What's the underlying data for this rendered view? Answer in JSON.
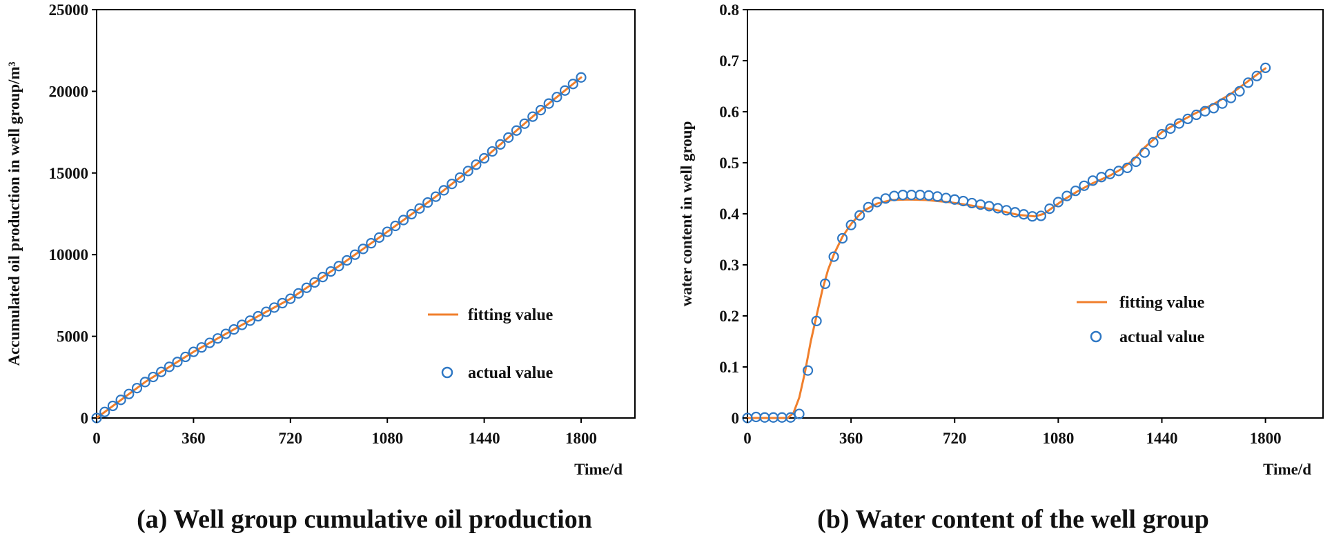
{
  "colors": {
    "fit_line": "#F07F2C",
    "actual_marker": "#2F78C4",
    "axis": "#000000",
    "text": "#111111"
  },
  "chart_data": [
    {
      "id": "a",
      "type": "line",
      "caption": "(a) Well group cumulative oil production",
      "title": "",
      "xlabel": "Time/d",
      "ylabel": "Accumulated oil production in well group/m³",
      "xlim": [
        0,
        2000
      ],
      "ylim": [
        0,
        25000
      ],
      "xticks": [
        0,
        360,
        720,
        1080,
        1440,
        1800
      ],
      "yticks": [
        0,
        5000,
        10000,
        15000,
        20000,
        25000
      ],
      "xtick_labels": [
        "0",
        "360",
        "720",
        "1080",
        "1440",
        "1800"
      ],
      "ytick_labels": [
        "0",
        "5000",
        "10000",
        "15000",
        "20000",
        "25000"
      ],
      "grid": false,
      "legend_position": "lower-right",
      "series": [
        {
          "name": "fitting value",
          "kind": "line",
          "x": [
            0,
            180,
            360,
            540,
            720,
            900,
            1080,
            1260,
            1440,
            1620,
            1800
          ],
          "y": [
            0,
            2200,
            4050,
            5700,
            7300,
            9300,
            11400,
            13550,
            15900,
            18450,
            20850
          ]
        },
        {
          "name": "actual value",
          "kind": "marker",
          "x": [
            0,
            30,
            60,
            90,
            120,
            150,
            180,
            210,
            240,
            270,
            300,
            330,
            360,
            390,
            420,
            450,
            480,
            510,
            540,
            570,
            600,
            630,
            660,
            690,
            720,
            750,
            780,
            810,
            840,
            870,
            900,
            930,
            960,
            990,
            1020,
            1050,
            1080,
            1110,
            1140,
            1170,
            1200,
            1230,
            1260,
            1290,
            1320,
            1350,
            1380,
            1410,
            1440,
            1470,
            1500,
            1530,
            1560,
            1590,
            1620,
            1650,
            1680,
            1710,
            1740,
            1770,
            1800
          ],
          "y": [
            0,
            370,
            740,
            1110,
            1470,
            1830,
            2200,
            2510,
            2820,
            3130,
            3430,
            3740,
            4050,
            4320,
            4600,
            4870,
            5150,
            5420,
            5700,
            5960,
            6230,
            6500,
            6760,
            7030,
            7300,
            7630,
            7970,
            8300,
            8630,
            8970,
            9300,
            9650,
            10000,
            10350,
            10700,
            11050,
            11400,
            11760,
            12120,
            12480,
            12830,
            13190,
            13550,
            13940,
            14330,
            14720,
            15120,
            15510,
            15900,
            16320,
            16750,
            17170,
            17600,
            18020,
            18450,
            18850,
            19250,
            19650,
            20050,
            20450,
            20850
          ]
        }
      ]
    },
    {
      "id": "b",
      "type": "line",
      "caption": "(b) Water content of the well group",
      "title": "",
      "xlabel": "Time/d",
      "ylabel": "water content in well group",
      "xlim": [
        0,
        2000
      ],
      "ylim": [
        0,
        0.8
      ],
      "xticks": [
        0,
        360,
        720,
        1080,
        1440,
        1800
      ],
      "yticks": [
        0,
        0.1,
        0.2,
        0.3,
        0.4,
        0.5,
        0.6,
        0.7,
        0.8
      ],
      "xtick_labels": [
        "0",
        "360",
        "720",
        "1080",
        "1440",
        "1800"
      ],
      "ytick_labels": [
        "0",
        "0.1",
        "0.2",
        "0.3",
        "0.4",
        "0.5",
        "0.6",
        "0.7",
        "0.8"
      ],
      "grid": false,
      "legend_position": "lower-right",
      "series": [
        {
          "name": "fitting value",
          "kind": "line",
          "x": [
            0,
            140,
            160,
            180,
            200,
            220,
            240,
            260,
            280,
            300,
            330,
            360,
            400,
            450,
            500,
            560,
            620,
            700,
            780,
            860,
            940,
            1000,
            1030,
            1060,
            1100,
            1150,
            1200,
            1260,
            1300,
            1340,
            1380,
            1440,
            1500,
            1560,
            1620,
            1680,
            1740,
            1800
          ],
          "y": [
            0,
            0,
            0.01,
            0.04,
            0.09,
            0.15,
            0.2,
            0.25,
            0.29,
            0.32,
            0.355,
            0.38,
            0.405,
            0.42,
            0.427,
            0.428,
            0.427,
            0.423,
            0.416,
            0.408,
            0.398,
            0.395,
            0.4,
            0.412,
            0.428,
            0.445,
            0.46,
            0.475,
            0.488,
            0.505,
            0.53,
            0.56,
            0.58,
            0.598,
            0.615,
            0.635,
            0.66,
            0.685
          ]
        },
        {
          "name": "actual value",
          "kind": "marker",
          "x": [
            0,
            30,
            60,
            90,
            120,
            150,
            180,
            210,
            240,
            270,
            300,
            330,
            360,
            390,
            420,
            450,
            480,
            510,
            540,
            570,
            600,
            630,
            660,
            690,
            720,
            750,
            780,
            810,
            840,
            870,
            900,
            930,
            960,
            990,
            1020,
            1050,
            1080,
            1110,
            1140,
            1170,
            1200,
            1230,
            1260,
            1290,
            1320,
            1350,
            1380,
            1410,
            1440,
            1470,
            1500,
            1530,
            1560,
            1590,
            1620,
            1650,
            1680,
            1710,
            1740,
            1770,
            1800
          ],
          "y": [
            0,
            0.002,
            0.001,
            0.001,
            0.001,
            0.001,
            0.008,
            0.093,
            0.19,
            0.263,
            0.316,
            0.352,
            0.378,
            0.397,
            0.413,
            0.423,
            0.43,
            0.435,
            0.437,
            0.437,
            0.437,
            0.436,
            0.434,
            0.431,
            0.428,
            0.425,
            0.421,
            0.418,
            0.415,
            0.411,
            0.407,
            0.403,
            0.399,
            0.395,
            0.396,
            0.41,
            0.423,
            0.435,
            0.445,
            0.455,
            0.465,
            0.472,
            0.478,
            0.484,
            0.49,
            0.502,
            0.52,
            0.54,
            0.556,
            0.567,
            0.577,
            0.586,
            0.594,
            0.601,
            0.607,
            0.616,
            0.627,
            0.64,
            0.657,
            0.67,
            0.686
          ]
        }
      ]
    }
  ]
}
